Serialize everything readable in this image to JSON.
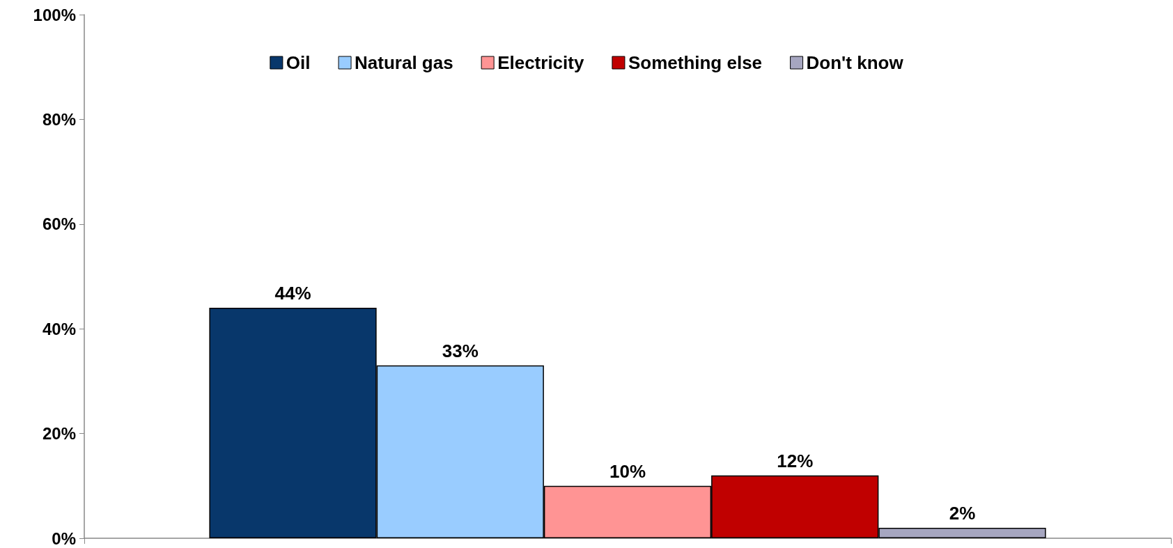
{
  "chart_data": {
    "type": "bar",
    "categories": [
      null
    ],
    "series": [
      {
        "name": "Oil",
        "color": "#08376b",
        "values": [
          44
        ],
        "value_labels": [
          "44%"
        ]
      },
      {
        "name": "Natural gas",
        "color": "#99ccff",
        "values": [
          33
        ],
        "value_labels": [
          "33%"
        ]
      },
      {
        "name": "Electricity",
        "color": "#ff9494",
        "values": [
          10
        ],
        "value_labels": [
          "10%"
        ]
      },
      {
        "name": "Something else",
        "color": "#c00000",
        "values": [
          12
        ],
        "value_labels": [
          "12%"
        ]
      },
      {
        "name": "Don't know",
        "color": "#a6a6c0",
        "values": [
          2
        ],
        "value_labels": [
          "2%"
        ]
      }
    ],
    "ylim": [
      0,
      100
    ],
    "yticks": [
      {
        "value": 0,
        "label": "0%"
      },
      {
        "value": 20,
        "label": "20%"
      },
      {
        "value": 40,
        "label": "40%"
      },
      {
        "value": 60,
        "label": "60%"
      },
      {
        "value": 80,
        "label": "80%"
      },
      {
        "value": 100,
        "label": "100%"
      }
    ],
    "grid": false,
    "legend": "top"
  }
}
